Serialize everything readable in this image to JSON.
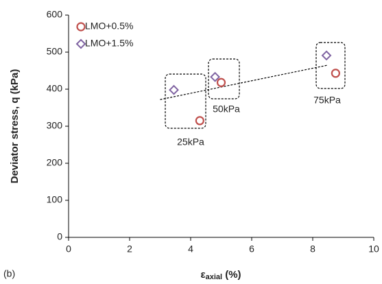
{
  "chart_data": {
    "type": "scatter",
    "panel_label": "(b)",
    "ylabel": "Deviator stress, q (kPa)",
    "xlabel": {
      "symbol": "ε",
      "subscript": "axial",
      "suffix": " (%)"
    },
    "xlim": [
      0,
      10
    ],
    "xticks": [
      0,
      2,
      4,
      6,
      8,
      10
    ],
    "ylim": [
      0,
      600
    ],
    "yticks": [
      0,
      100,
      200,
      300,
      400,
      500,
      600
    ],
    "grid": false,
    "legend": "upper left",
    "series": [
      {
        "name": "LMO+0.5%",
        "color": "#c0504d",
        "marker": "circle",
        "x": [
          4.3,
          5.0,
          8.75
        ],
        "values": [
          315,
          418,
          443
        ]
      },
      {
        "name": "LMO+1.5%",
        "color": "#8064a2",
        "marker": "diamond",
        "x": [
          3.45,
          4.8,
          8.45
        ],
        "values": [
          398,
          433,
          491
        ]
      }
    ],
    "trendline": {
      "x": [
        3.0,
        8.5
      ],
      "values": [
        372,
        465
      ]
    },
    "annotations": [
      "25kPa",
      "50kPa",
      "75kPa"
    ]
  }
}
